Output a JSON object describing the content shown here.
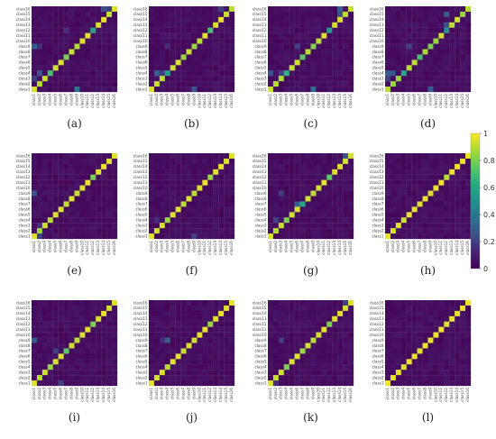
{
  "chart_data": {
    "type": "heatmap",
    "title": "",
    "row_labels": [
      "class16",
      "class15",
      "class14",
      "class13",
      "class12",
      "class11",
      "class10",
      "class9",
      "class8",
      "class7",
      "class6",
      "class5",
      "class4",
      "class3",
      "class2",
      "class1"
    ],
    "col_labels": [
      "class1",
      "class2",
      "class3",
      "class4",
      "class5",
      "class6",
      "class7",
      "class8",
      "class9",
      "class10",
      "class11",
      "class12",
      "class13",
      "class14",
      "class15",
      "class16"
    ],
    "colorbar": {
      "min": 0,
      "max": 1,
      "ticks": [
        "0",
        "0.2",
        "0.4",
        "0.6",
        "0.8",
        "1"
      ],
      "colormap": "viridis"
    },
    "panels": [
      {
        "label": "(a)",
        "diagonal": [
          0.95,
          0.9,
          0.92,
          0.7,
          0.93,
          0.95,
          0.8,
          0.92,
          0.88,
          0.95,
          0.96,
          0.6,
          0.95,
          0.97,
          0.92,
          0.95
        ],
        "off_diagonal": [
          {
            "row": "class16",
            "col": "class14",
            "value": 0.25
          },
          {
            "row": "class16",
            "col": "class15",
            "value": 0.2
          },
          {
            "row": "class9",
            "col": "class1",
            "value": 0.3
          },
          {
            "row": "class9",
            "col": "class2",
            "value": 0.15
          },
          {
            "row": "class1",
            "col": "class9",
            "value": 0.4
          },
          {
            "row": "class3",
            "col": "class1",
            "value": 0.2
          },
          {
            "row": "class4",
            "col": "class2",
            "value": 0.25
          },
          {
            "row": "class12",
            "col": "class7",
            "value": 0.15
          }
        ]
      },
      {
        "label": "(b)",
        "diagonal": [
          0.95,
          0.92,
          0.9,
          0.55,
          0.93,
          0.95,
          0.85,
          0.92,
          0.85,
          0.9,
          0.96,
          0.7,
          0.95,
          0.97,
          0.92,
          0.9
        ],
        "off_diagonal": [
          {
            "row": "class16",
            "col": "class14",
            "value": 0.2
          },
          {
            "row": "class4",
            "col": "class2",
            "value": 0.3
          },
          {
            "row": "class4",
            "col": "class3",
            "value": 0.2
          },
          {
            "row": "class1",
            "col": "class9",
            "value": 0.25
          },
          {
            "row": "class9",
            "col": "class4",
            "value": 0.15
          }
        ]
      },
      {
        "label": "(c)",
        "diagonal": [
          0.93,
          0.9,
          0.88,
          0.65,
          0.92,
          0.93,
          0.75,
          0.9,
          0.82,
          0.9,
          0.95,
          0.55,
          0.93,
          0.95,
          0.9,
          0.92
        ],
        "off_diagonal": [
          {
            "row": "class16",
            "col": "class14",
            "value": 0.3
          },
          {
            "row": "class15",
            "col": "class14",
            "value": 0.25
          },
          {
            "row": "class4",
            "col": "class1",
            "value": 0.25
          },
          {
            "row": "class4",
            "col": "class3",
            "value": 0.2
          },
          {
            "row": "class1",
            "col": "class9",
            "value": 0.35
          },
          {
            "row": "class9",
            "col": "class6",
            "value": 0.2
          }
        ]
      },
      {
        "label": "(d)",
        "diagonal": [
          0.9,
          0.85,
          0.85,
          0.6,
          0.9,
          0.9,
          0.7,
          0.88,
          0.8,
          0.85,
          0.93,
          0.5,
          0.9,
          0.93,
          0.85,
          0.9
        ],
        "off_diagonal": [
          {
            "row": "class15",
            "col": "class12",
            "value": 0.3
          },
          {
            "row": "class13",
            "col": "class12",
            "value": 0.25
          },
          {
            "row": "class4",
            "col": "class1",
            "value": 0.3
          },
          {
            "row": "class4",
            "col": "class2",
            "value": 0.25
          },
          {
            "row": "class3",
            "col": "class1",
            "value": 0.2
          },
          {
            "row": "class1",
            "col": "class9",
            "value": 0.3
          },
          {
            "row": "class9",
            "col": "class5",
            "value": 0.2
          }
        ]
      },
      {
        "label": "(e)",
        "diagonal": [
          0.95,
          0.85,
          0.93,
          0.9,
          0.95,
          0.95,
          0.92,
          0.95,
          0.92,
          0.95,
          0.97,
          0.8,
          0.96,
          0.97,
          0.95,
          0.96
        ],
        "off_diagonal": [
          {
            "row": "class9",
            "col": "class1",
            "value": 0.25
          },
          {
            "row": "class1",
            "col": "class2",
            "value": 0.2
          },
          {
            "row": "class3",
            "col": "class2",
            "value": 0.15
          }
        ]
      },
      {
        "label": "(f)",
        "diagonal": [
          0.96,
          0.93,
          0.94,
          0.85,
          0.95,
          0.96,
          0.9,
          0.95,
          0.9,
          0.95,
          0.97,
          0.85,
          0.96,
          0.97,
          0.95,
          0.96
        ],
        "off_diagonal": [
          {
            "row": "class1",
            "col": "class9",
            "value": 0.2
          },
          {
            "row": "class4",
            "col": "class2",
            "value": 0.15
          }
        ]
      },
      {
        "label": "(g)",
        "diagonal": [
          0.95,
          0.9,
          0.92,
          0.8,
          0.93,
          0.95,
          0.6,
          0.93,
          0.9,
          0.93,
          0.96,
          0.75,
          0.95,
          0.96,
          0.93,
          0.94
        ],
        "off_diagonal": [
          {
            "row": "class16",
            "col": "class15",
            "value": 0.25
          },
          {
            "row": "class7",
            "col": "class6",
            "value": 0.3
          },
          {
            "row": "class9",
            "col": "class3",
            "value": 0.2
          },
          {
            "row": "class4",
            "col": "class2",
            "value": 0.2
          }
        ]
      },
      {
        "label": "(h)",
        "diagonal": [
          0.97,
          0.95,
          0.96,
          0.93,
          0.97,
          0.97,
          0.95,
          0.97,
          0.95,
          0.97,
          0.98,
          0.9,
          0.97,
          0.98,
          0.97,
          0.97
        ],
        "off_diagonal": [
          {
            "row": "class9",
            "col": "class1",
            "value": 0.1
          }
        ]
      },
      {
        "label": "(i)",
        "diagonal": [
          0.95,
          0.9,
          0.93,
          0.85,
          0.94,
          0.95,
          0.75,
          0.93,
          0.9,
          0.94,
          0.96,
          0.8,
          0.95,
          0.96,
          0.94,
          0.95
        ],
        "off_diagonal": [
          {
            "row": "class9",
            "col": "class1",
            "value": 0.3
          },
          {
            "row": "class7",
            "col": "class5",
            "value": 0.2
          },
          {
            "row": "class1",
            "col": "class6",
            "value": 0.2
          }
        ]
      },
      {
        "label": "(j)",
        "diagonal": [
          0.96,
          0.93,
          0.95,
          0.9,
          0.95,
          0.96,
          0.92,
          0.95,
          0.93,
          0.96,
          0.97,
          0.85,
          0.96,
          0.97,
          0.96,
          0.96
        ],
        "off_diagonal": [
          {
            "row": "class9",
            "col": "class4",
            "value": 0.3
          },
          {
            "row": "class9",
            "col": "class3",
            "value": 0.15
          }
        ]
      },
      {
        "label": "(k)",
        "diagonal": [
          0.95,
          0.92,
          0.93,
          0.8,
          0.94,
          0.95,
          0.85,
          0.94,
          0.9,
          0.94,
          0.96,
          0.8,
          0.95,
          0.96,
          0.94,
          0.95
        ],
        "off_diagonal": [
          {
            "row": "class16",
            "col": "class15",
            "value": 0.2
          },
          {
            "row": "class9",
            "col": "class3",
            "value": 0.2
          },
          {
            "row": "class1",
            "col": "class2",
            "value": 0.15
          }
        ]
      },
      {
        "label": "(l)",
        "diagonal": [
          0.98,
          0.97,
          0.97,
          0.95,
          0.98,
          0.98,
          0.96,
          0.98,
          0.97,
          0.98,
          0.98,
          0.95,
          0.98,
          0.98,
          0.98,
          0.98
        ],
        "off_diagonal": []
      }
    ]
  }
}
